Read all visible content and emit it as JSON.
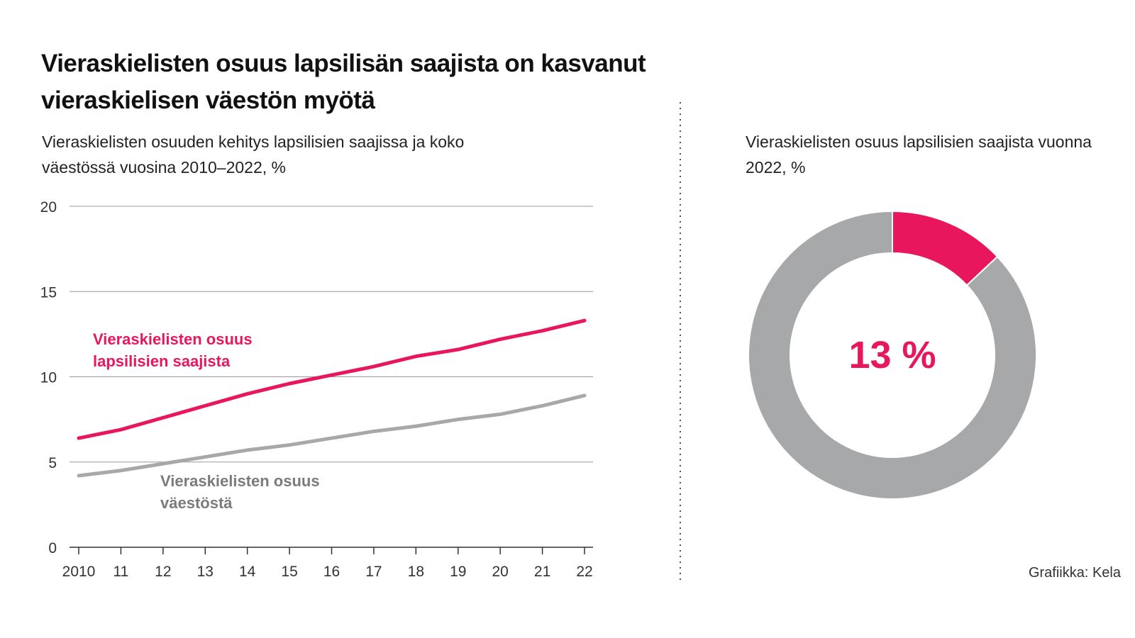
{
  "title": "Vieraskielisten osuus lapsilisän saajista on kasvanut vieraskielisen väestön myötä",
  "credit": "Grafiikka: Kela",
  "chart_data": [
    {
      "type": "line",
      "subtitle": "Vieraskielisten osuuden kehitys lapsilisien saajissa ja koko väestössä vuosina 2010–2022, %",
      "categories": [
        "2010",
        "11",
        "12",
        "13",
        "14",
        "15",
        "16",
        "17",
        "18",
        "19",
        "20",
        "21",
        "22"
      ],
      "series": [
        {
          "name": "Vieraskielisten osuus lapsilisien saajista",
          "color": "#e8175d",
          "values": [
            6.4,
            6.9,
            7.6,
            8.3,
            9.0,
            9.6,
            10.1,
            10.6,
            11.2,
            11.6,
            12.2,
            12.7,
            13.3
          ]
        },
        {
          "name": "Vieraskielisten osuus väestöstä",
          "color": "#a7a8aa",
          "values": [
            4.2,
            4.5,
            4.9,
            5.3,
            5.7,
            6.0,
            6.4,
            6.8,
            7.1,
            7.5,
            7.8,
            8.3,
            8.9
          ]
        }
      ],
      "ylim": [
        0,
        20
      ],
      "yticks": [
        0,
        5,
        10,
        15,
        20
      ],
      "grid": true
    },
    {
      "type": "donut",
      "subtitle": "Vieraskielisten osuus lapsilisien saajista vuonna 2022, %",
      "values": [
        13,
        87
      ],
      "value_labels": [
        "13 %",
        null
      ],
      "colors": [
        "#e8175d",
        "#a7a8aa"
      ]
    }
  ]
}
